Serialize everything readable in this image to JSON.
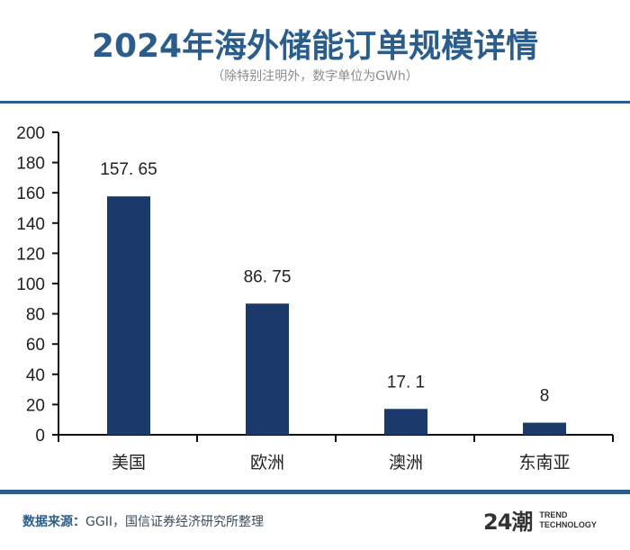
{
  "header": {
    "title": "2024年海外储能订单规模详情",
    "subtitle": "（除特别注明外，数字单位为GWh）"
  },
  "colors": {
    "accent": "#2a5d8c",
    "bar": "#1b3a6b",
    "axis": "#111111"
  },
  "chart_data": {
    "type": "bar",
    "title": "2024年海外储能订单规模详情",
    "xlabel": "",
    "ylabel": "",
    "unit": "GWh",
    "categories": [
      "美国",
      "欧洲",
      "澳洲",
      "东南亚"
    ],
    "values": [
      157.65,
      86.75,
      17.1,
      8
    ],
    "data_labels": [
      "157. 65",
      "86. 75",
      "17. 1",
      "8"
    ],
    "ylim": [
      0,
      200
    ],
    "yticks": [
      0,
      20,
      40,
      60,
      80,
      100,
      120,
      140,
      160,
      180,
      200
    ],
    "ytick_labels": [
      "0",
      "20",
      "40",
      "60",
      "80",
      "100",
      "120",
      "140",
      "160",
      "180",
      "200"
    ],
    "grid": false,
    "legend": "none"
  },
  "footer": {
    "source_label": "数据来源：",
    "source_text": "GGII，国信证券经济研究所整理"
  },
  "logo": {
    "mark": "24潮",
    "line1": "TREND",
    "line2": "TECHNOLOGY"
  }
}
